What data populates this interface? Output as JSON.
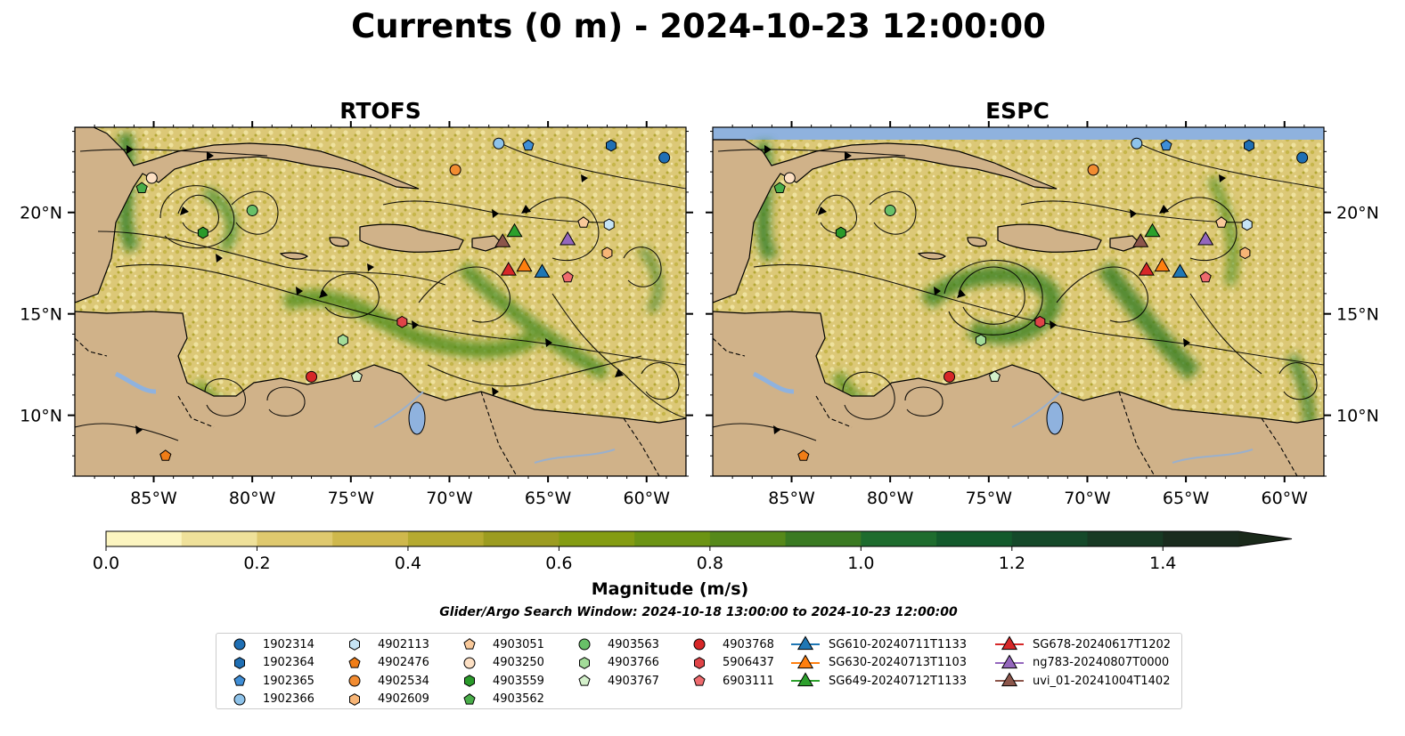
{
  "title": "Currents (0 m) - 2024-10-23 12:00:00",
  "panels": [
    {
      "title": "RTOFS",
      "has_top_band": false
    },
    {
      "title": "ESPC",
      "has_top_band": true
    }
  ],
  "map_extent": {
    "lon": [
      -89,
      -58
    ],
    "lat": [
      7,
      24.2
    ]
  },
  "lon_ticks": [
    {
      "value": -85,
      "label": "85°W"
    },
    {
      "value": -80,
      "label": "80°W"
    },
    {
      "value": -75,
      "label": "75°W"
    },
    {
      "value": -70,
      "label": "70°W"
    },
    {
      "value": -65,
      "label": "65°W"
    },
    {
      "value": -60,
      "label": "60°W"
    }
  ],
  "lat_ticks": [
    {
      "value": 10,
      "label": "10°N"
    },
    {
      "value": 15,
      "label": "15°N"
    },
    {
      "value": 20,
      "label": "20°N"
    }
  ],
  "colorbar": {
    "label": "Magnitude (m/s)",
    "min": 0,
    "max": 1.5,
    "extend": "max",
    "ticks": [
      {
        "value": 0,
        "label": "0.0"
      },
      {
        "value": 0.2,
        "label": "0.2"
      },
      {
        "value": 0.4,
        "label": "0.4"
      },
      {
        "value": 0.6,
        "label": "0.6"
      },
      {
        "value": 0.8,
        "label": "0.8"
      },
      {
        "value": 1.0,
        "label": "1.0"
      },
      {
        "value": 1.2,
        "label": "1.2"
      },
      {
        "value": 1.4,
        "label": "1.4"
      }
    ],
    "colors": [
      "#fcf5c0",
      "#efe19a",
      "#dfc96e",
      "#cfb84c",
      "#b5aa30",
      "#9c9c20",
      "#849c12",
      "#6c9414",
      "#56891a",
      "#3a7a22",
      "#1e6c2e",
      "#135a2c",
      "#15492a",
      "#183a24",
      "#1a2c1e"
    ],
    "overflow_color": "#1a2a1a"
  },
  "search_window": "Glider/Argo Search Window: 2024-10-18 13:00:00 to 2024-10-23 12:00:00",
  "legend_columns": [
    [
      {
        "label": "1902314",
        "marker": "circle",
        "color": "#1f6fb4"
      },
      {
        "label": "1902364",
        "marker": "hexagon",
        "color": "#1f6fb4"
      },
      {
        "label": "1902365",
        "marker": "pentagon",
        "color": "#3f8ed6"
      },
      {
        "label": "1902366",
        "marker": "circle",
        "color": "#8ec3ea"
      }
    ],
    [
      {
        "label": "4902113",
        "marker": "hexagon",
        "color": "#c6e4f5"
      },
      {
        "label": "4902476",
        "marker": "pentagon",
        "color": "#f07d17"
      },
      {
        "label": "4902534",
        "marker": "circle",
        "color": "#f28c31"
      },
      {
        "label": "4902609",
        "marker": "hexagon",
        "color": "#f7b576"
      }
    ],
    [
      {
        "label": "4903051",
        "marker": "pentagon",
        "color": "#f9c99a"
      },
      {
        "label": "4903250",
        "marker": "circle",
        "color": "#fde0c4"
      },
      {
        "label": "4903559",
        "marker": "hexagon",
        "color": "#2a9a2a"
      },
      {
        "label": "4903562",
        "marker": "pentagon",
        "color": "#49ad49"
      }
    ],
    [
      {
        "label": "4903563",
        "marker": "circle",
        "color": "#68c068"
      },
      {
        "label": "4903766",
        "marker": "hexagon",
        "color": "#a3dc99"
      },
      {
        "label": "4903767",
        "marker": "pentagon",
        "color": "#d4f0cb"
      }
    ],
    [
      {
        "label": "4903768",
        "marker": "circle",
        "color": "#d62728"
      },
      {
        "label": "5906437",
        "marker": "hexagon",
        "color": "#e04448"
      },
      {
        "label": "6903111",
        "marker": "pentagon",
        "color": "#ee6b6e"
      }
    ],
    [
      {
        "label": "SG610-20240711T1133",
        "marker": "triangle",
        "color": "#1f77b4",
        "line": true
      },
      {
        "label": "SG630-20240713T1103",
        "marker": "triangle",
        "color": "#ff7f0e",
        "line": true
      },
      {
        "label": "SG649-20240712T1133",
        "marker": "triangle",
        "color": "#2ca02c",
        "line": true
      }
    ],
    [
      {
        "label": "SG678-20240617T1202",
        "marker": "triangle",
        "color": "#d62728",
        "line": true
      },
      {
        "label": "ng783-20240807T0000",
        "marker": "triangle",
        "color": "#9467bd",
        "line": true
      },
      {
        "label": "uvi_01-20241004T1402",
        "marker": "triangle",
        "color": "#8c564b",
        "line": true
      }
    ]
  ],
  "argo_positions": [
    {
      "id": "1902314",
      "lon": -59.1,
      "lat": 22.7
    },
    {
      "id": "1902364",
      "lon": -61.8,
      "lat": 23.3
    },
    {
      "id": "1902365",
      "lon": -66.0,
      "lat": 23.3
    },
    {
      "id": "1902366",
      "lon": -67.5,
      "lat": 23.4
    },
    {
      "id": "4902113",
      "lon": -61.9,
      "lat": 19.4
    },
    {
      "id": "4902476",
      "lon": -84.4,
      "lat": 8.0
    },
    {
      "id": "4902534",
      "lon": -69.7,
      "lat": 22.1
    },
    {
      "id": "4902609",
      "lon": -62.0,
      "lat": 18.0
    },
    {
      "id": "4903051",
      "lon": -63.2,
      "lat": 19.5
    },
    {
      "id": "4903250",
      "lon": -85.1,
      "lat": 21.7
    },
    {
      "id": "4903559",
      "lon": -82.5,
      "lat": 19.0
    },
    {
      "id": "4903562",
      "lon": -85.6,
      "lat": 21.2
    },
    {
      "id": "4903563",
      "lon": -80.0,
      "lat": 20.1
    },
    {
      "id": "4903766",
      "lon": -75.4,
      "lat": 13.7
    },
    {
      "id": "4903767",
      "lon": -74.7,
      "lat": 11.9
    },
    {
      "id": "4903768",
      "lon": -77.0,
      "lat": 11.9
    },
    {
      "id": "5906437",
      "lon": -72.4,
      "lat": 14.6
    },
    {
      "id": "6903111",
      "lon": -64.0,
      "lat": 16.8
    }
  ],
  "glider_positions": [
    {
      "id": "SG610-20240711T1133",
      "lon": -65.3,
      "lat": 17.1
    },
    {
      "id": "SG630-20240713T1103",
      "lon": -66.2,
      "lat": 17.4
    },
    {
      "id": "SG649-20240712T1133",
      "lon": -66.7,
      "lat": 19.1
    },
    {
      "id": "SG678-20240617T1202",
      "lon": -67.0,
      "lat": 17.2
    },
    {
      "id": "ng783-20240807T0000",
      "lon": -64.0,
      "lat": 18.7
    },
    {
      "id": "uvi_01-20241004T1402",
      "lon": -67.3,
      "lat": 18.6
    }
  ]
}
